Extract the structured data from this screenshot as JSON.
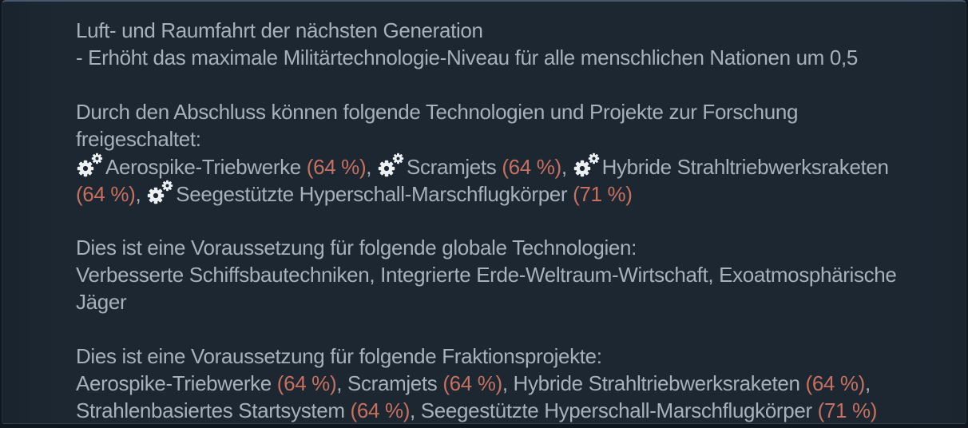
{
  "panel": {
    "background": "#1d2732",
    "border_top_color": "#49596c",
    "text_color": "#a7b1bb",
    "accent_color": "#c7705f",
    "icon_color": "#ecf0f3",
    "icons": {
      "project_marker": "double-gear-icon"
    }
  },
  "content": {
    "blocks": [
      {
        "name": "title",
        "lines": [
          [
            {
              "type": "text",
              "value": "Luft- und Raumfahrt der nächsten Generation"
            }
          ],
          [
            {
              "type": "text",
              "value": "- Erhöht das maximale Militärtechnologie-Niveau für alle menschlichen Nationen um 0,5"
            }
          ]
        ]
      },
      {
        "name": "unlocks",
        "lines": [
          [
            {
              "type": "text",
              "value": "Durch den Abschluss können folgende Technologien und Projekte zur Forschung"
            }
          ],
          [
            {
              "type": "text",
              "value": "freigeschaltet:"
            }
          ],
          [
            {
              "type": "gear-icon"
            },
            {
              "type": "text",
              "value": "Aerospike-Triebwerke "
            },
            {
              "type": "percent",
              "value": "(64 %)"
            },
            {
              "type": "text",
              "value": ", "
            },
            {
              "type": "gear-icon"
            },
            {
              "type": "text",
              "value": "Scramjets "
            },
            {
              "type": "percent",
              "value": "(64 %)"
            },
            {
              "type": "text",
              "value": ", "
            },
            {
              "type": "gear-icon"
            },
            {
              "type": "text",
              "value": "Hybride Strahltriebwerksraketen"
            }
          ],
          [
            {
              "type": "percent",
              "value": "(64 %)"
            },
            {
              "type": "text",
              "value": ", "
            },
            {
              "type": "gear-icon"
            },
            {
              "type": "text",
              "value": "Seegestützte Hyperschall-Marschflugkörper "
            },
            {
              "type": "percent",
              "value": "(71 %)"
            }
          ]
        ]
      },
      {
        "name": "global-technologies",
        "lines": [
          [
            {
              "type": "text",
              "value": "Dies ist eine Voraussetzung für folgende globale Technologien:"
            }
          ],
          [
            {
              "type": "text",
              "value": "Verbesserte Schiffsbautechniken, Integrierte Erde-Weltraum-Wirtschaft, Exoatmosphärische"
            }
          ],
          [
            {
              "type": "text",
              "value": "Jäger"
            }
          ]
        ]
      },
      {
        "name": "faction-projects",
        "lines": [
          [
            {
              "type": "text",
              "value": "Dies ist eine Voraussetzung für folgende Fraktionsprojekte:"
            }
          ],
          [
            {
              "type": "text",
              "value": "Aerospike-Triebwerke "
            },
            {
              "type": "percent",
              "value": "(64 %)"
            },
            {
              "type": "text",
              "value": ", Scramjets "
            },
            {
              "type": "percent",
              "value": "(64 %)"
            },
            {
              "type": "text",
              "value": ", Hybride Strahltriebwerksraketen "
            },
            {
              "type": "percent",
              "value": "(64 %)"
            },
            {
              "type": "text",
              "value": ","
            }
          ],
          [
            {
              "type": "text",
              "value": "Strahlenbasiertes Startsystem "
            },
            {
              "type": "percent",
              "value": "(64 %)"
            },
            {
              "type": "text",
              "value": ", Seegestützte Hyperschall-Marschflugkörper "
            },
            {
              "type": "percent",
              "value": "(71 %)"
            }
          ]
        ]
      }
    ]
  }
}
